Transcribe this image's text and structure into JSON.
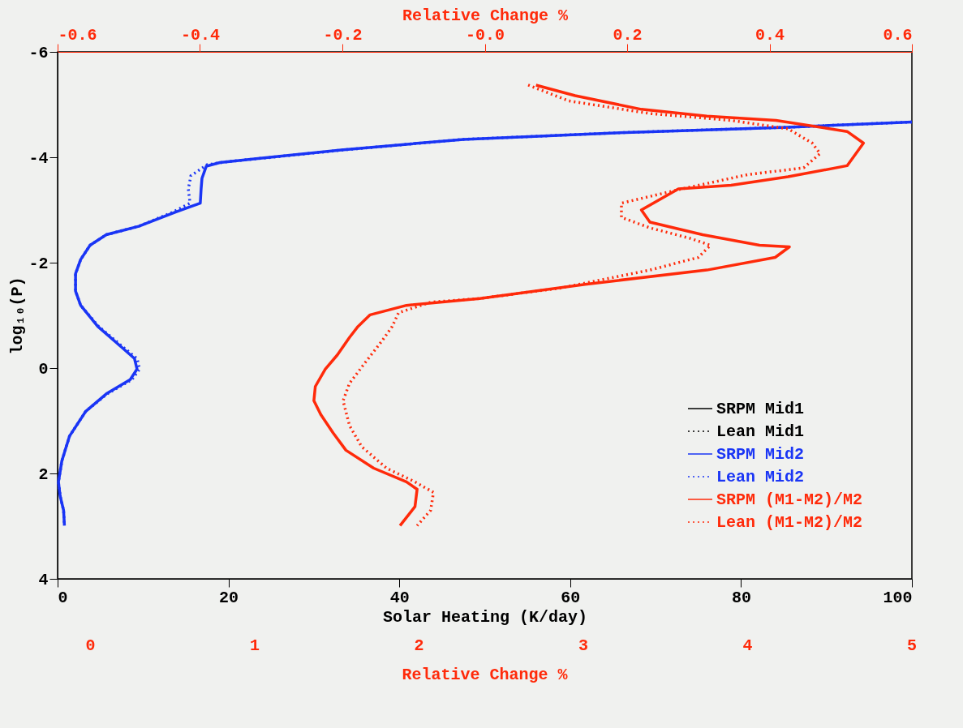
{
  "chart_data": {
    "type": "line",
    "xlabel": "Solar Heating (K/day)",
    "ylabel": "log₁₀(P)",
    "x2label": "Relative Change %",
    "annotations": [
      "Relative Change %",
      "0",
      "1",
      "2",
      "3",
      "4",
      "5"
    ],
    "xlim": [
      0,
      100
    ],
    "xticks": [
      0,
      20,
      40,
      60,
      80,
      100
    ],
    "x2lim": [
      -0.6,
      0.6
    ],
    "x2ticks": [
      -0.6,
      -0.4,
      -0.2,
      {
        "value": 0,
        "label": "-0.0"
      },
      0.2,
      0.4,
      0.6
    ],
    "ylim": [
      4,
      -6
    ],
    "yticks": [
      -6,
      -4,
      -2,
      0,
      2,
      4
    ],
    "grid": false,
    "legend": "bottom right",
    "marker": "none",
    "series": [
      {
        "name": "SRPM Mid1",
        "color": "#000000",
        "line_style": "solid"
      },
      {
        "name": "Lean Mid1",
        "color": "#000000",
        "line_style": "dotted"
      },
      {
        "name": "SRPM Mid2",
        "color": "#1a35f5",
        "line_style": "solid",
        "x": [
          100,
          85.5,
          66.5,
          47.5,
          33.2,
          23.7,
          19,
          17.4,
          16.9,
          16.8,
          16.7,
          13.8,
          9.5,
          5.7,
          3.8,
          2.7,
          2.1,
          2.1,
          2.7,
          4.7,
          7.6,
          9,
          9.3,
          8.5,
          5.7,
          3.3,
          1.4,
          0.5,
          0.1,
          0.3,
          0.7,
          0.8
        ],
        "values": [
          -4.67,
          -4.57,
          -4.47,
          -4.34,
          -4.14,
          -3.98,
          -3.9,
          -3.83,
          -3.6,
          -3.4,
          -3.13,
          -2.96,
          -2.69,
          -2.53,
          -2.33,
          -2.06,
          -1.79,
          -1.46,
          -1.19,
          -0.79,
          -0.38,
          -0.18,
          0.02,
          0.22,
          0.49,
          0.82,
          1.29,
          1.76,
          2.16,
          2.43,
          2.7,
          2.99
        ]
      },
      {
        "name": "Lean Mid2",
        "color": "#1a35f5",
        "line_style": "dotted",
        "x": [
          100,
          85.5,
          66.5,
          47.5,
          33.5,
          24.5,
          20,
          17.5,
          15.6,
          15.3,
          15.5,
          13.5,
          9.5,
          5.7,
          3.8,
          2.7,
          2.1,
          2.1,
          2.7,
          4.8,
          7.8,
          9.3,
          9.6,
          8.7,
          5.8,
          3.3,
          1.4,
          0.5,
          0.1,
          0.3,
          0.7,
          0.8
        ],
        "values": [
          -4.67,
          -4.57,
          -4.47,
          -4.34,
          -4.14,
          -3.99,
          -3.92,
          -3.86,
          -3.65,
          -3.4,
          -3.13,
          -2.96,
          -2.69,
          -2.53,
          -2.33,
          -2.06,
          -1.79,
          -1.46,
          -1.19,
          -0.79,
          -0.38,
          -0.18,
          0.02,
          0.22,
          0.49,
          0.82,
          1.29,
          1.76,
          2.16,
          2.43,
          2.7,
          2.99
        ]
      },
      {
        "name": "SRPM (M1-M2)/M2",
        "color": "#ff2a0a",
        "line_style": "solid",
        "axis": "x2",
        "x": [
          0.072,
          0.127,
          0.22,
          0.312,
          0.409,
          0.509,
          0.532,
          0.509,
          0.426,
          0.346,
          0.272,
          0.22,
          0.232,
          0.306,
          0.386,
          0.428,
          0.408,
          0.312,
          0.141,
          -0.007,
          -0.11,
          -0.161,
          -0.178,
          -0.19,
          -0.207,
          -0.224,
          -0.238,
          -0.24,
          -0.23,
          -0.213,
          -0.195,
          -0.156,
          -0.11,
          -0.095,
          -0.098,
          -0.119
        ],
        "values": [
          -5.37,
          -5.17,
          -4.91,
          -4.78,
          -4.7,
          -4.49,
          -4.27,
          -3.84,
          -3.63,
          -3.47,
          -3.4,
          -3.0,
          -2.77,
          -2.53,
          -2.33,
          -2.3,
          -2.1,
          -1.86,
          -1.59,
          -1.32,
          -1.19,
          -1.01,
          -0.79,
          -0.58,
          -0.25,
          0.02,
          0.35,
          0.62,
          0.89,
          1.23,
          1.56,
          1.9,
          2.16,
          2.3,
          2.63,
          2.99
        ]
      },
      {
        "name": "Lean (M1-M2)/M2",
        "color": "#ff2a0a",
        "line_style": "dotted",
        "axis": "x2",
        "x": [
          0.061,
          0.118,
          0.232,
          0.346,
          0.426,
          0.46,
          0.471,
          0.448,
          0.369,
          0.277,
          0.192,
          0.192,
          0.232,
          0.289,
          0.317,
          0.3,
          0.232,
          0.107,
          -0.007,
          -0.076,
          -0.121,
          -0.13,
          -0.144,
          -0.167,
          -0.19,
          -0.199,
          -0.19,
          -0.173,
          -0.138,
          -0.098,
          -0.072,
          -0.076,
          -0.095
        ],
        "values": [
          -5.37,
          -5.07,
          -4.83,
          -4.7,
          -4.54,
          -4.27,
          -4.07,
          -3.8,
          -3.67,
          -3.4,
          -3.13,
          -2.86,
          -2.66,
          -2.46,
          -2.33,
          -2.1,
          -1.86,
          -1.52,
          -1.32,
          -1.25,
          -1.05,
          -0.79,
          -0.52,
          -0.12,
          0.29,
          0.62,
          1.09,
          1.49,
          1.9,
          2.16,
          2.36,
          2.7,
          2.99
        ]
      }
    ]
  }
}
